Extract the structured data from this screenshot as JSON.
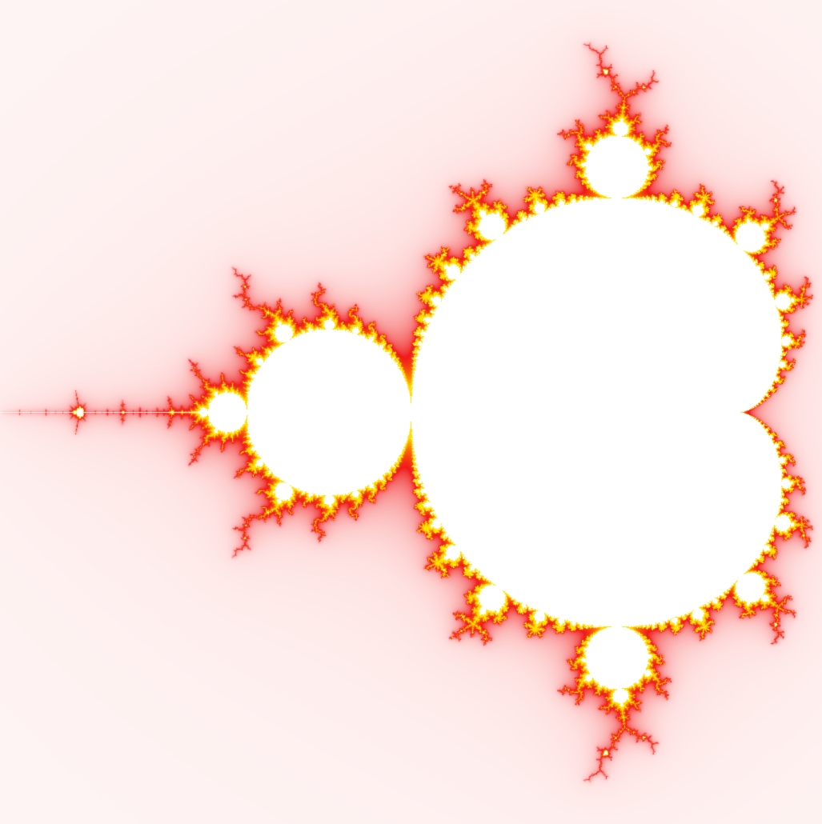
{
  "fractal": {
    "set": "mandelbrot",
    "view": {
      "re_min": -2.0,
      "re_max": 0.5,
      "im_min": -1.25,
      "im_max": 1.25
    },
    "max_iterations": 200,
    "escape_radius": 2,
    "colors": {
      "background": "#fef8f7",
      "interior": "#ffffff",
      "glow": "#ffd2d2",
      "red": "#ef1a1a",
      "orange": "#ff8a00",
      "yellow": "#ffe000"
    }
  }
}
